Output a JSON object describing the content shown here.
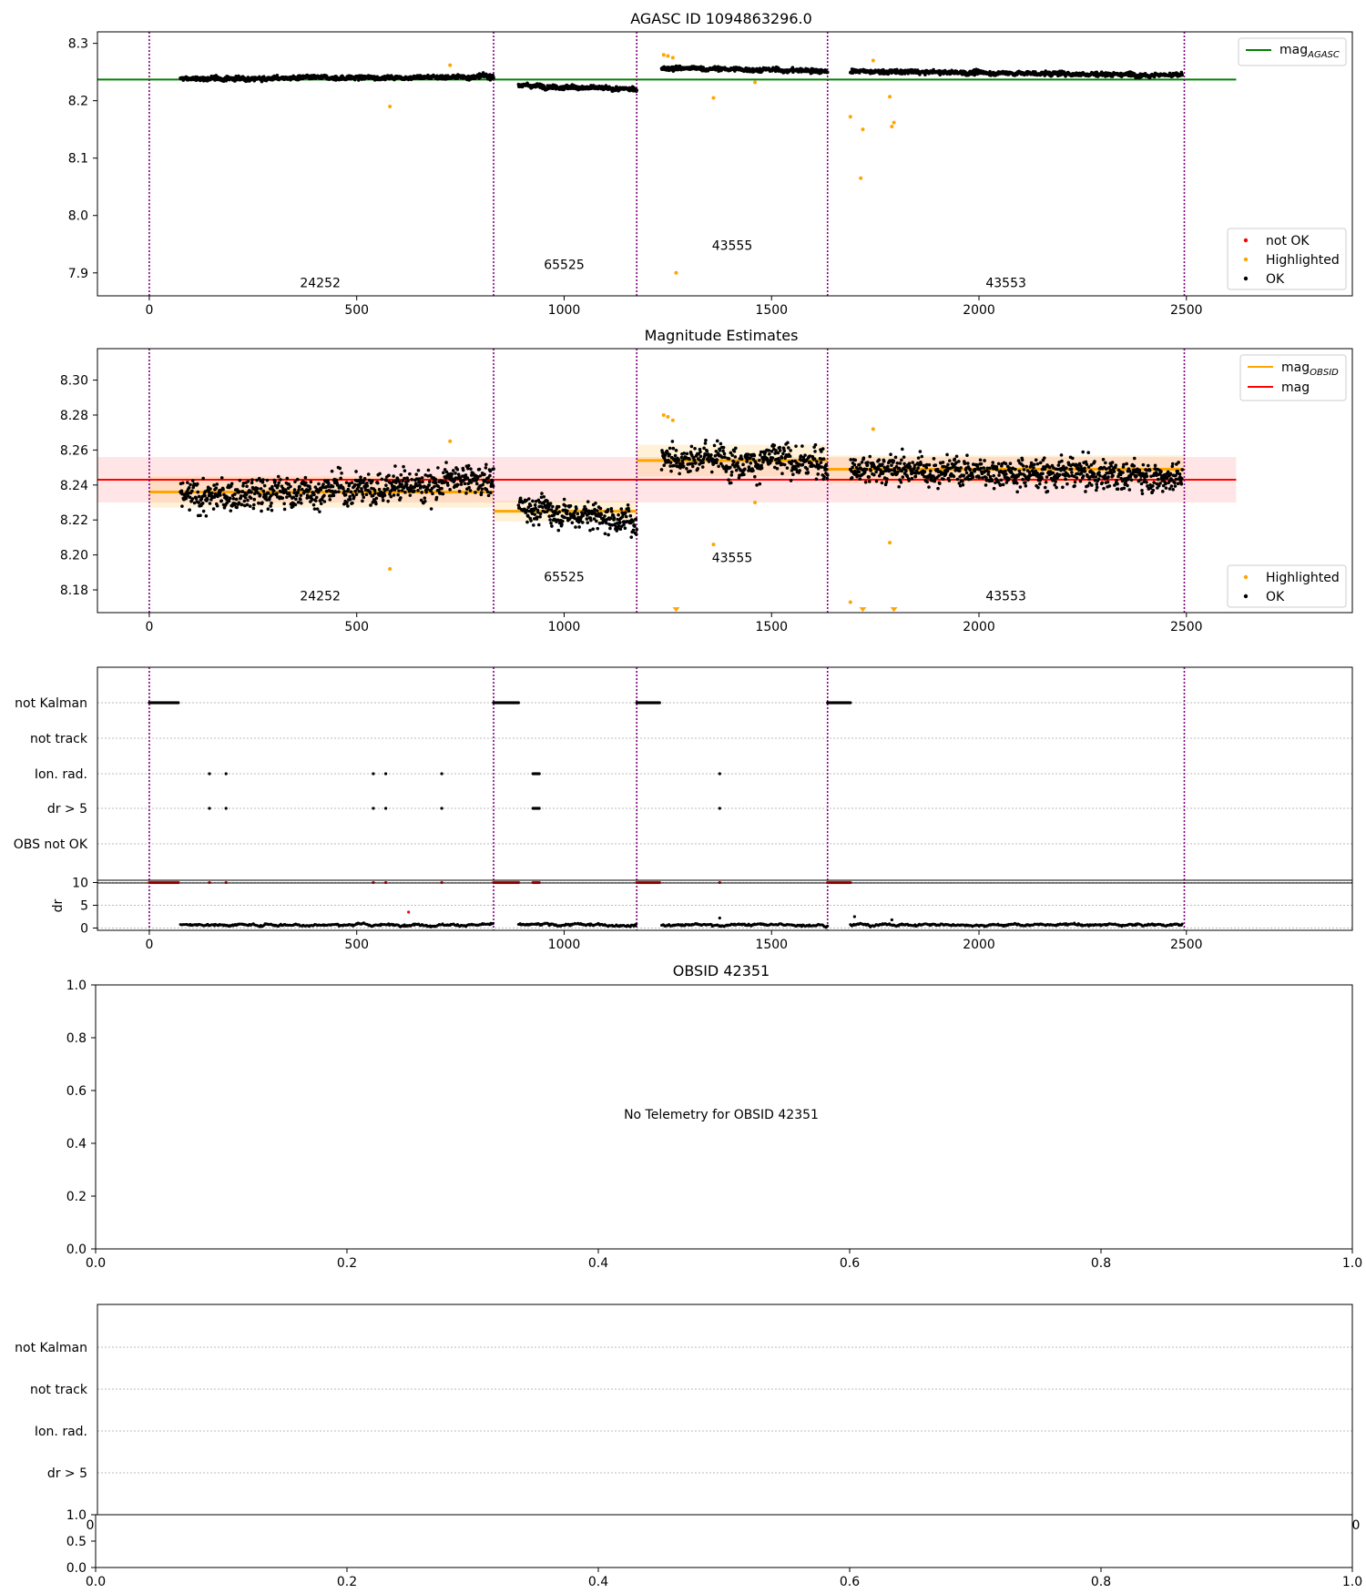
{
  "chart_data": [
    {
      "type": "scatter",
      "title": "AGASC ID 1094863296.0",
      "xlim": [
        -125,
        2900
      ],
      "ylim": [
        7.86,
        8.32
      ],
      "xticks": [
        0,
        500,
        1000,
        1500,
        2000,
        2500
      ],
      "yticks": [
        7.9,
        8.0,
        8.1,
        8.2,
        8.3
      ],
      "ytick_labels": [
        "7.9",
        "8.0",
        "8.1",
        "8.2",
        "8.3"
      ],
      "obs_boundaries": [
        0,
        830,
        1175,
        1635,
        2495
      ],
      "obs_labels": [
        {
          "text": "24252",
          "x": 412,
          "y": 7.875
        },
        {
          "text": "65525",
          "x": 1000,
          "y": 7.907
        },
        {
          "text": "43555",
          "x": 1405,
          "y": 7.94
        },
        {
          "text": "43553",
          "x": 2065,
          "y": 7.875
        }
      ],
      "legend_top": [
        {
          "label_main": "mag",
          "label_sub": "AGASC",
          "color": "#008000",
          "kind": "line"
        }
      ],
      "legend_bottom": [
        {
          "label": "not OK",
          "color": "#ff0000",
          "kind": "dot"
        },
        {
          "label": "Highlighted",
          "color": "#ffa500",
          "kind": "dot"
        },
        {
          "label": "OK",
          "color": "#000000",
          "kind": "dot"
        }
      ],
      "series": [
        {
          "name": "mag_AGASC",
          "kind": "hline",
          "y": 8.237,
          "x": [
            -125,
            2620
          ],
          "color": "#008000"
        },
        {
          "name": "OK",
          "kind": "band_points",
          "color": "#000000",
          "segments": [
            {
              "x": [
                75,
                830
              ],
              "y_start": 8.238,
              "y_end": 8.242,
              "scatter": 0.006
            },
            {
              "x": [
                890,
                1175
              ],
              "y_start": 8.227,
              "y_end": 8.219,
              "scatter": 0.006
            },
            {
              "x": [
                1235,
                1635
              ],
              "y_start": 8.257,
              "y_end": 8.252,
              "scatter": 0.006
            },
            {
              "x": [
                1690,
                2490
              ],
              "y_start": 8.251,
              "y_end": 8.245,
              "scatter": 0.006
            }
          ]
        },
        {
          "name": "Highlighted",
          "kind": "points",
          "color": "#ffa500",
          "points": [
            [
              580,
              8.19
            ],
            [
              725,
              8.262
            ],
            [
              1240,
              8.28
            ],
            [
              1250,
              8.278
            ],
            [
              1262,
              8.275
            ],
            [
              1270,
              7.9
            ],
            [
              1360,
              8.205
            ],
            [
              1460,
              8.232
            ],
            [
              1690,
              8.172
            ],
            [
              1715,
              8.065
            ],
            [
              1720,
              8.15
            ],
            [
              1745,
              8.27
            ],
            [
              1785,
              8.207
            ],
            [
              1790,
              8.155
            ],
            [
              1795,
              8.162
            ]
          ]
        }
      ]
    },
    {
      "type": "scatter",
      "title": "Magnitude Estimates",
      "xlim": [
        -125,
        2900
      ],
      "ylim": [
        8.167,
        8.318
      ],
      "xticks": [
        0,
        500,
        1000,
        1500,
        2000,
        2500
      ],
      "yticks": [
        8.18,
        8.2,
        8.22,
        8.24,
        8.26,
        8.28,
        8.3
      ],
      "ytick_labels": [
        "8.18",
        "8.20",
        "8.22",
        "8.24",
        "8.26",
        "8.28",
        "8.30"
      ],
      "obs_boundaries": [
        0,
        830,
        1175,
        1635,
        2495
      ],
      "obs_labels": [
        {
          "text": "24252",
          "x": 412,
          "y": 8.174
        },
        {
          "text": "65525",
          "x": 1000,
          "y": 8.185
        },
        {
          "text": "43555",
          "x": 1405,
          "y": 8.196
        },
        {
          "text": "43553",
          "x": 2065,
          "y": 8.174
        }
      ],
      "legend_top": [
        {
          "label_main": "mag",
          "label_sub": "OBSID",
          "color": "#ffa500",
          "kind": "line"
        },
        {
          "label_main": "mag",
          "label_sub": "",
          "color": "#ff0000",
          "kind": "line"
        }
      ],
      "legend_bottom": [
        {
          "label": "Highlighted",
          "color": "#ffa500",
          "kind": "dot"
        },
        {
          "label": "OK",
          "color": "#000000",
          "kind": "dot"
        }
      ],
      "series": [
        {
          "name": "mag",
          "kind": "hline_band",
          "y": 8.243,
          "band": [
            8.23,
            8.256
          ],
          "x": [
            -125,
            2620
          ],
          "color": "#ff0000"
        },
        {
          "name": "mag_OBSID",
          "kind": "segments",
          "color": "#ffa500",
          "segments": [
            {
              "x": [
                0,
                830
              ],
              "y": 8.236,
              "band": [
                8.227,
                8.245
              ]
            },
            {
              "x": [
                830,
                1175
              ],
              "y": 8.225,
              "band": [
                8.219,
                8.231
              ]
            },
            {
              "x": [
                1175,
                1635
              ],
              "y": 8.254,
              "band": [
                8.245,
                8.263
              ]
            },
            {
              "x": [
                1635,
                2495
              ],
              "y": 8.249,
              "band": [
                8.241,
                8.257
              ]
            }
          ]
        },
        {
          "name": "OK",
          "kind": "band_points",
          "color": "#000000",
          "segments": [
            {
              "x": [
                75,
                830
              ],
              "y_start": 8.232,
              "y_end": 8.243,
              "scatter": 0.014
            },
            {
              "x": [
                890,
                1175
              ],
              "y_start": 8.228,
              "y_end": 8.219,
              "scatter": 0.012
            },
            {
              "x": [
                1235,
                1635
              ],
              "y_start": 8.257,
              "y_end": 8.252,
              "scatter": 0.014
            },
            {
              "x": [
                1690,
                2490
              ],
              "y_start": 8.25,
              "y_end": 8.245,
              "scatter": 0.013
            }
          ]
        },
        {
          "name": "Highlighted",
          "kind": "points",
          "color": "#ffa500",
          "points": [
            [
              580,
              8.192
            ],
            [
              725,
              8.265
            ],
            [
              1240,
              8.28
            ],
            [
              1250,
              8.279
            ],
            [
              1262,
              8.277
            ],
            [
              1360,
              8.206
            ],
            [
              1460,
              8.23
            ],
            [
              1745,
              8.272
            ],
            [
              1785,
              8.207
            ],
            [
              1690,
              8.173
            ]
          ]
        },
        {
          "name": "Highlighted (below range)",
          "kind": "points_down",
          "color": "#ffa500",
          "points": [
            [
              1270,
              8.168
            ],
            [
              1720,
              8.168
            ],
            [
              1795,
              8.168
            ]
          ]
        }
      ]
    },
    {
      "type": "scatter",
      "title": "",
      "xlim": [
        -125,
        2900
      ],
      "categories": [
        "not Kalman",
        "not track",
        "Ion. rad.",
        "dr > 5",
        "OBS not OK"
      ],
      "xticks": [
        0,
        500,
        1000,
        1500,
        2000,
        2500
      ],
      "obs_boundaries": [
        0,
        830,
        1175,
        1635,
        2495
      ],
      "flags": {
        "not Kalman": [
          [
            0,
            70
          ],
          [
            830,
            890
          ],
          [
            1175,
            1232
          ],
          [
            1635,
            1690
          ]
        ],
        "not track": [],
        "Ion. rad.": [
          [
            145,
            145
          ],
          [
            185,
            185
          ],
          [
            540,
            540
          ],
          [
            570,
            570
          ],
          [
            705,
            705
          ],
          [
            925,
            940
          ],
          [
            1375,
            1375
          ]
        ],
        "dr > 5": [
          [
            145,
            145
          ],
          [
            185,
            185
          ],
          [
            540,
            540
          ],
          [
            570,
            570
          ],
          [
            705,
            705
          ],
          [
            925,
            940
          ],
          [
            1375,
            1375
          ]
        ],
        "OBS not OK": []
      },
      "dr_panel": {
        "ylabel": "dr",
        "ylim": [
          -0.5,
          10.5
        ],
        "yticks": [
          0,
          5,
          10
        ],
        "top_y": 10,
        "ok_segments": [
          [
            75,
            830
          ],
          [
            890,
            1175
          ],
          [
            1235,
            1635
          ],
          [
            1690,
            2490
          ]
        ],
        "typical_dr": 0.7,
        "outliers": [
          [
            625,
            3.5
          ],
          [
            1700,
            2.5
          ],
          [
            1790,
            1.8
          ],
          [
            1375,
            2.2
          ]
        ]
      }
    },
    {
      "type": "scatter",
      "title": "OBSID 42351",
      "xlim": [
        0,
        1
      ],
      "ylim": [
        0,
        1
      ],
      "xticks": [
        0,
        0.2,
        0.4,
        0.6,
        0.8,
        1.0
      ],
      "xtick_labels": [
        "0.0",
        "0.2",
        "0.4",
        "0.6",
        "0.8",
        "1.0"
      ],
      "yticks": [
        0,
        0.2,
        0.4,
        0.6,
        0.8,
        1.0
      ],
      "ytick_labels": [
        "0.0",
        "0.2",
        "0.4",
        "0.6",
        "0.8",
        "1.0"
      ],
      "annotation": "No Telemetry for OBSID 42351"
    },
    {
      "type": "scatter",
      "title": "",
      "categories": [
        "not Kalman",
        "not track",
        "Ion. rad.",
        "dr > 5"
      ],
      "lower": {
        "xticks": [
          0,
          0.2,
          0.4,
          0.6,
          0.8,
          1.0
        ],
        "xtick_labels": [
          "0.0",
          "0.2",
          "0.4",
          "0.6",
          "0.8",
          "1.0"
        ],
        "yticks": [
          0,
          0.5,
          1.0
        ],
        "ytick_labels": [
          "0.0",
          "0.5",
          "1.0"
        ]
      },
      "clipped_tick_labels": [
        "0",
        "0"
      ]
    }
  ]
}
